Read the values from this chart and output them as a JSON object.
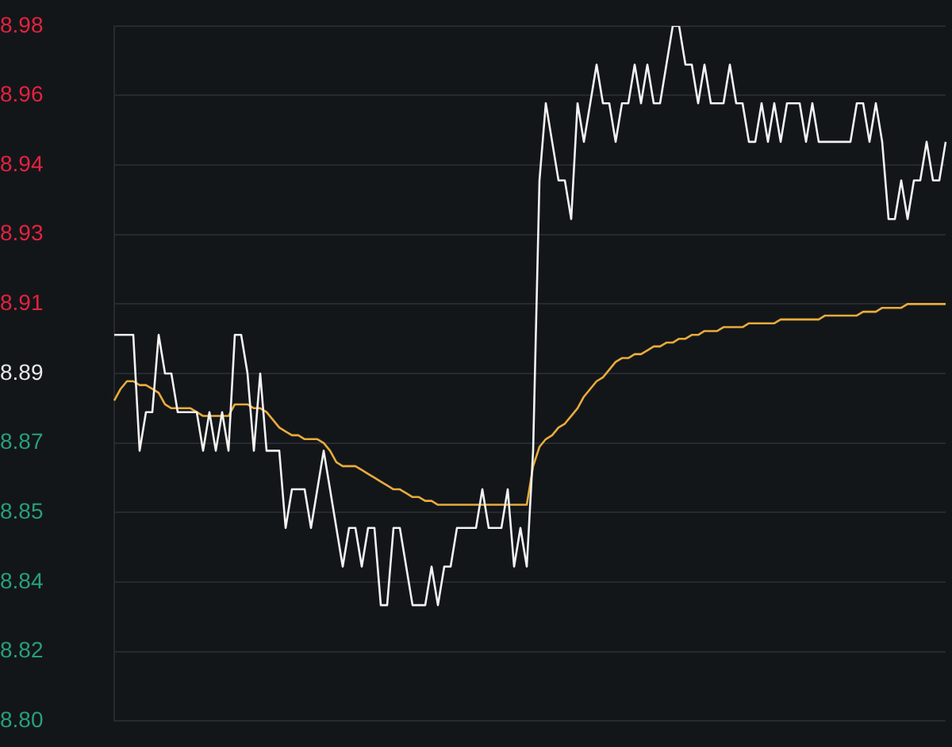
{
  "chart_data": {
    "type": "line",
    "categories": [
      null,
      null,
      null,
      null,
      null,
      null,
      null,
      null,
      null,
      null,
      null,
      null,
      null,
      null,
      null,
      null,
      null,
      null,
      null,
      null,
      null,
      null,
      null,
      null,
      null,
      null,
      null,
      null,
      null,
      null,
      null,
      null,
      null,
      null,
      null,
      null,
      null,
      null,
      null,
      null,
      null,
      null,
      null,
      null,
      null,
      null,
      null,
      null,
      null,
      null,
      null,
      null,
      null,
      null,
      null,
      null,
      null,
      null,
      null,
      null,
      null,
      null,
      null,
      null,
      null,
      null,
      null,
      null,
      null,
      null,
      null,
      null,
      null,
      null,
      null,
      null,
      null,
      null,
      null,
      null,
      null,
      null,
      null,
      null,
      null,
      null,
      null,
      null,
      null,
      null,
      null,
      null,
      null,
      null,
      null,
      null,
      null,
      null,
      null,
      null,
      null,
      null,
      null,
      null,
      null,
      null,
      null,
      null,
      null,
      null,
      null,
      null,
      null,
      null,
      null,
      null,
      null,
      null,
      null,
      null,
      null,
      null,
      null,
      null,
      null,
      null,
      null,
      null,
      null,
      null,
      null,
      null
    ],
    "series": [
      {
        "color": "#f2f2f2",
        "values": [
          8.9,
          8.9,
          8.9,
          8.9,
          8.87,
          8.88,
          8.88,
          8.9,
          8.89,
          8.89,
          8.88,
          8.88,
          8.88,
          8.88,
          8.87,
          8.88,
          8.87,
          8.88,
          8.87,
          8.9,
          8.9,
          8.89,
          8.87,
          8.89,
          8.87,
          8.87,
          8.87,
          8.85,
          8.86,
          8.86,
          8.86,
          8.85,
          8.86,
          8.87,
          8.86,
          8.85,
          8.84,
          8.85,
          8.85,
          8.84,
          8.85,
          8.85,
          8.83,
          8.83,
          8.85,
          8.85,
          8.84,
          8.83,
          8.83,
          8.83,
          8.84,
          8.83,
          8.84,
          8.84,
          8.85,
          8.85,
          8.85,
          8.85,
          8.86,
          8.85,
          8.85,
          8.85,
          8.86,
          8.84,
          8.85,
          8.84,
          8.87,
          8.94,
          8.96,
          8.95,
          8.94,
          8.94,
          8.93,
          8.96,
          8.95,
          8.96,
          8.97,
          8.96,
          8.96,
          8.95,
          8.96,
          8.96,
          8.97,
          8.96,
          8.97,
          8.96,
          8.96,
          8.97,
          8.98,
          8.98,
          8.97,
          8.97,
          8.96,
          8.97,
          8.96,
          8.96,
          8.96,
          8.97,
          8.96,
          8.96,
          8.95,
          8.95,
          8.96,
          8.95,
          8.96,
          8.95,
          8.96,
          8.96,
          8.96,
          8.95,
          8.96,
          8.95,
          8.95,
          8.95,
          8.95,
          8.95,
          8.95,
          8.96,
          8.96,
          8.95,
          8.96,
          8.95,
          8.93,
          8.93,
          8.94,
          8.93,
          8.94,
          8.94,
          8.95,
          8.94,
          8.94,
          8.95
        ]
      },
      {
        "color": "#e9ab3c",
        "values": [
          8.883,
          8.886,
          8.888,
          8.888,
          8.887,
          8.887,
          8.886,
          8.885,
          8.882,
          8.881,
          8.881,
          8.881,
          8.881,
          8.88,
          8.879,
          8.879,
          8.879,
          8.879,
          8.879,
          8.882,
          8.882,
          8.882,
          8.881,
          8.881,
          8.88,
          8.878,
          8.876,
          8.875,
          8.874,
          8.874,
          8.873,
          8.873,
          8.873,
          8.872,
          8.87,
          8.867,
          8.866,
          8.866,
          8.866,
          8.865,
          8.864,
          8.863,
          8.862,
          8.861,
          8.86,
          8.86,
          8.859,
          8.858,
          8.858,
          8.857,
          8.857,
          8.856,
          8.856,
          8.856,
          8.856,
          8.856,
          8.856,
          8.856,
          8.856,
          8.856,
          8.856,
          8.856,
          8.856,
          8.856,
          8.856,
          8.856,
          8.866,
          8.871,
          8.873,
          8.874,
          8.876,
          8.877,
          8.879,
          8.881,
          8.884,
          8.886,
          8.888,
          8.889,
          8.891,
          8.893,
          8.894,
          8.894,
          8.895,
          8.895,
          8.896,
          8.897,
          8.897,
          8.898,
          8.898,
          8.899,
          8.899,
          8.9,
          8.9,
          8.901,
          8.901,
          8.901,
          8.902,
          8.902,
          8.902,
          8.902,
          8.903,
          8.903,
          8.903,
          8.903,
          8.903,
          8.904,
          8.904,
          8.904,
          8.904,
          8.904,
          8.904,
          8.904,
          8.905,
          8.905,
          8.905,
          8.905,
          8.905,
          8.905,
          8.906,
          8.906,
          8.906,
          8.907,
          8.907,
          8.907,
          8.907,
          8.908,
          8.908,
          8.908,
          8.908,
          8.908,
          8.908,
          8.908
        ]
      }
    ],
    "ylim": [
      8.8,
      8.98
    ],
    "yticks": [
      {
        "value": 8.98,
        "label": "8.98"
      },
      {
        "value": 8.962,
        "label": "8.96"
      },
      {
        "value": 8.944,
        "label": "8.94"
      },
      {
        "value": 8.926,
        "label": "8.93"
      },
      {
        "value": 8.908,
        "label": "8.91"
      },
      {
        "value": 8.89,
        "label": "8.89"
      },
      {
        "value": 8.872,
        "label": "8.87"
      },
      {
        "value": 8.854,
        "label": "8.85"
      },
      {
        "value": 8.836,
        "label": "8.84"
      },
      {
        "value": 8.818,
        "label": "8.82"
      },
      {
        "value": 8.8,
        "label": "8.80"
      }
    ],
    "grid": "y",
    "marker": "none",
    "line_style": "solid",
    "legend": false,
    "tick_labels": "y"
  }
}
